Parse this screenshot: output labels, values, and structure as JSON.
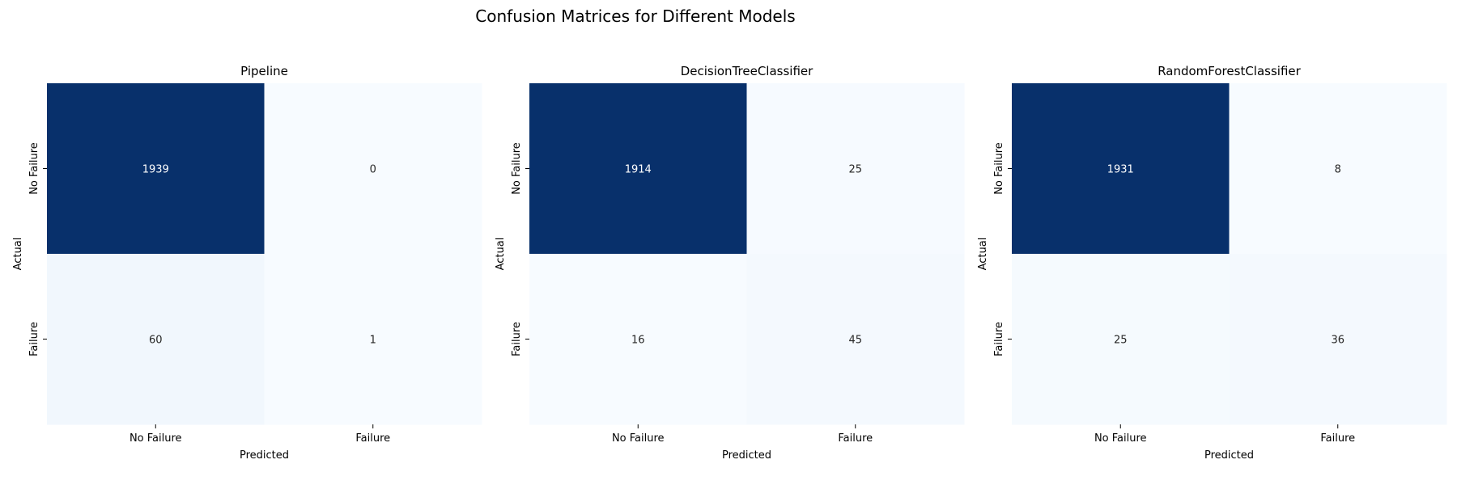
{
  "figure": {
    "title": "Confusion Matrices for Different Models"
  },
  "chart_data": [
    {
      "type": "heatmap",
      "title": "Pipeline",
      "xlabel": "Predicted",
      "ylabel": "Actual",
      "x_categories": [
        "No Failure",
        "Failure"
      ],
      "y_categories": [
        "No Failure",
        "Failure"
      ],
      "values": [
        [
          1939,
          0
        ],
        [
          60,
          1
        ]
      ],
      "colormap": "Blues",
      "colorbar": false
    },
    {
      "type": "heatmap",
      "title": "DecisionTreeClassifier",
      "xlabel": "Predicted",
      "ylabel": "Actual",
      "x_categories": [
        "No Failure",
        "Failure"
      ],
      "y_categories": [
        "No Failure",
        "Failure"
      ],
      "values": [
        [
          1914,
          25
        ],
        [
          16,
          45
        ]
      ],
      "colormap": "Blues",
      "colorbar": false
    },
    {
      "type": "heatmap",
      "title": "RandomForestClassifier",
      "xlabel": "Predicted",
      "ylabel": "Actual",
      "x_categories": [
        "No Failure",
        "Failure"
      ],
      "y_categories": [
        "No Failure",
        "Failure"
      ],
      "values": [
        [
          1931,
          8
        ],
        [
          25,
          36
        ]
      ],
      "colormap": "Blues",
      "colorbar": false
    }
  ],
  "colors": {
    "low": "#f7fbff",
    "high": "#08306b",
    "text_light": "#ffffff",
    "text_dark": "#262626"
  }
}
